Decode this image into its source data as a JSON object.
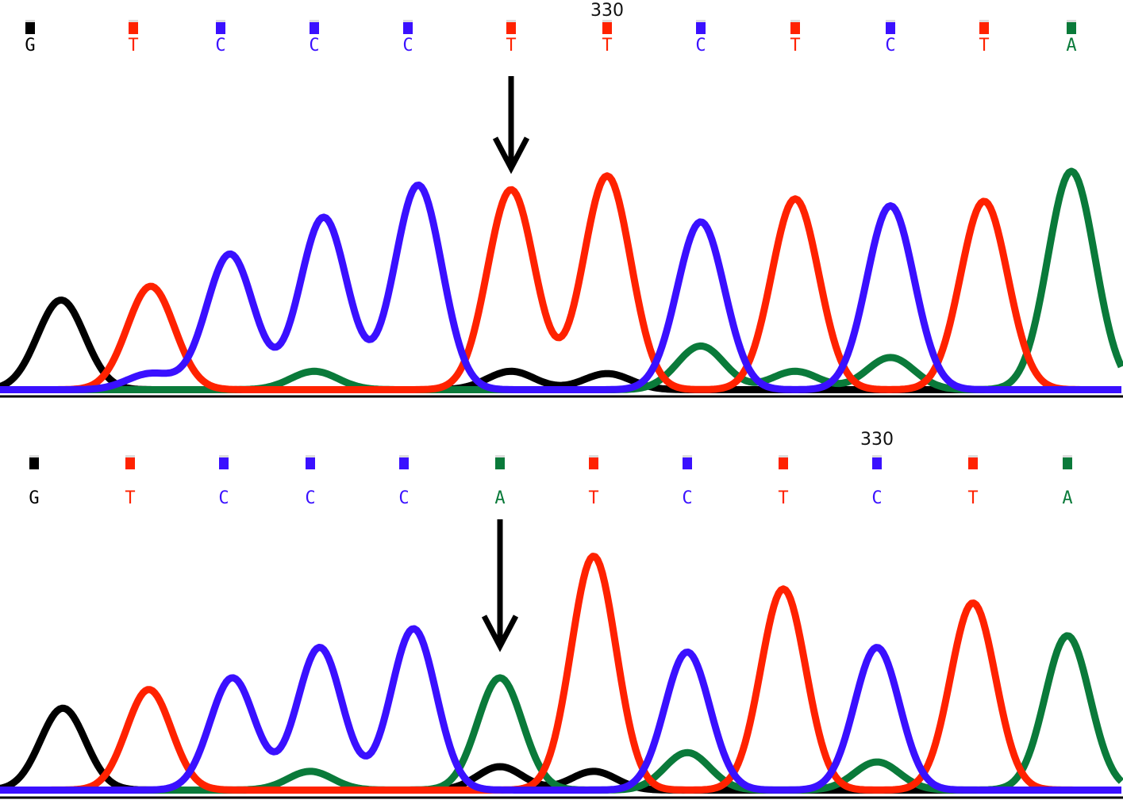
{
  "colors": {
    "G": "#000000",
    "T": "#ff2200",
    "C": "#3a10ff",
    "A": "#0a7a3a"
  },
  "chart_data": [
    {
      "type": "line",
      "position_label": "330",
      "bases": [
        "G",
        "T",
        "C",
        "C",
        "C",
        "T",
        "T",
        "C",
        "T",
        "C",
        "T",
        "A"
      ],
      "marker": {
        "base_index": 5
      },
      "series": [
        {
          "name": "G",
          "peaks": [
            {
              "pos": 0.3,
              "height": 0.39
            },
            {
              "pos": 5.0,
              "height": 0.08
            },
            {
              "pos": 6.0,
              "height": 0.07
            }
          ]
        },
        {
          "name": "T",
          "peaks": [
            {
              "pos": 1.2,
              "height": 0.45
            },
            {
              "pos": 5.0,
              "height": 0.87
            },
            {
              "pos": 6.0,
              "height": 0.93
            },
            {
              "pos": 8.0,
              "height": 0.83
            },
            {
              "pos": 10.0,
              "height": 0.82
            }
          ]
        },
        {
          "name": "C",
          "peaks": [
            {
              "pos": 2.1,
              "height": 0.59
            },
            {
              "pos": 3.1,
              "height": 0.75
            },
            {
              "pos": 4.1,
              "height": 0.89
            },
            {
              "pos": 7.0,
              "height": 0.73
            },
            {
              "pos": 9.0,
              "height": 0.8
            },
            {
              "pos": 1.2,
              "height": 0.07
            }
          ]
        },
        {
          "name": "A",
          "peaks": [
            {
              "pos": 11.0,
              "height": 0.95
            },
            {
              "pos": 7.0,
              "height": 0.19
            },
            {
              "pos": 9.0,
              "height": 0.14
            },
            {
              "pos": 3.0,
              "height": 0.08
            },
            {
              "pos": 8.0,
              "height": 0.08
            }
          ]
        }
      ]
    },
    {
      "type": "line",
      "position_label": "330",
      "bases": [
        "G",
        "T",
        "C",
        "C",
        "C",
        "A",
        "T",
        "C",
        "T",
        "C",
        "T",
        "A"
      ],
      "marker": {
        "base_index": 5
      },
      "series": [
        {
          "name": "G",
          "peaks": [
            {
              "pos": 0.3,
              "height": 0.35
            },
            {
              "pos": 5.0,
              "height": 0.1
            },
            {
              "pos": 6.0,
              "height": 0.08
            }
          ]
        },
        {
          "name": "T",
          "peaks": [
            {
              "pos": 1.2,
              "height": 0.43
            },
            {
              "pos": 6.0,
              "height": 1.0
            },
            {
              "pos": 8.0,
              "height": 0.86
            },
            {
              "pos": 10.0,
              "height": 0.8
            }
          ]
        },
        {
          "name": "C",
          "peaks": [
            {
              "pos": 2.1,
              "height": 0.48
            },
            {
              "pos": 3.1,
              "height": 0.61
            },
            {
              "pos": 4.1,
              "height": 0.69
            },
            {
              "pos": 7.0,
              "height": 0.59
            },
            {
              "pos": 9.0,
              "height": 0.61
            }
          ]
        },
        {
          "name": "A",
          "peaks": [
            {
              "pos": 5.0,
              "height": 0.48
            },
            {
              "pos": 11.0,
              "height": 0.66
            },
            {
              "pos": 7.0,
              "height": 0.16
            },
            {
              "pos": 9.0,
              "height": 0.12
            },
            {
              "pos": 3.0,
              "height": 0.08
            }
          ]
        }
      ]
    }
  ]
}
